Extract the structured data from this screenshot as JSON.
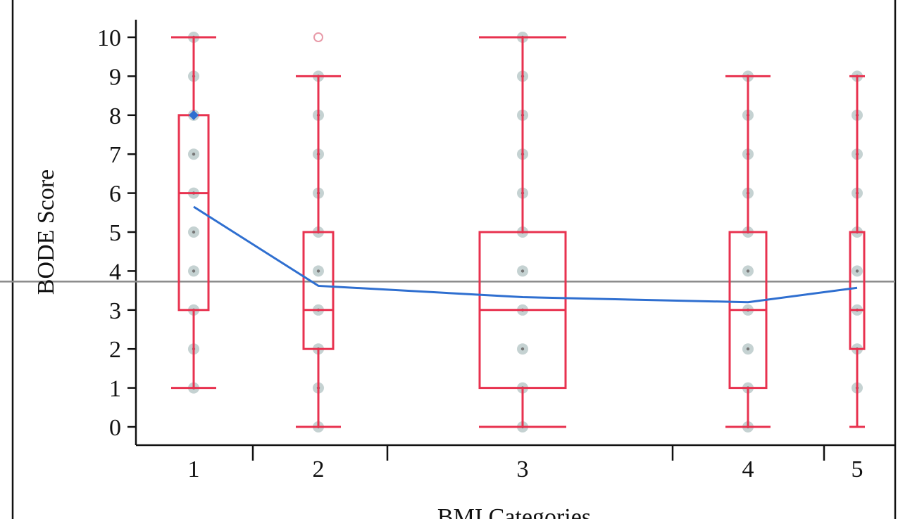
{
  "chart_data": {
    "type": "box",
    "title": "",
    "xlabel": "BMI Categories",
    "ylabel": "BODE Score",
    "ylim": [
      0,
      10
    ],
    "yticks": [
      0,
      1,
      2,
      3,
      4,
      5,
      6,
      7,
      8,
      9,
      10
    ],
    "categories": [
      "1",
      "2",
      "3",
      "4",
      "5"
    ],
    "boxes": [
      {
        "category": "1",
        "whisker_low": 1,
        "q1": 3,
        "median": 6,
        "q3": 8,
        "whisker_high": 10,
        "mean": 5.65,
        "outliers": [],
        "points": [
          1,
          2,
          3,
          4,
          5,
          6,
          7,
          8,
          9,
          10
        ]
      },
      {
        "category": "2",
        "whisker_low": 0,
        "q1": 2,
        "median": 3,
        "q3": 5,
        "whisker_high": 9,
        "mean": 3.62,
        "outliers": [
          10
        ],
        "points": [
          0,
          1,
          2,
          3,
          4,
          5,
          6,
          7,
          8,
          9
        ]
      },
      {
        "category": "3",
        "whisker_low": 0,
        "q1": 1,
        "median": 3,
        "q3": 5,
        "whisker_high": 10,
        "mean": 3.33,
        "outliers": [],
        "points": [
          0,
          1,
          2,
          3,
          4,
          5,
          6,
          7,
          8,
          9,
          10
        ]
      },
      {
        "category": "4",
        "whisker_low": 0,
        "q1": 1,
        "median": 3,
        "q3": 5,
        "whisker_high": 9,
        "mean": 3.2,
        "outliers": [],
        "points": [
          0,
          1,
          2,
          3,
          4,
          5,
          6,
          7,
          8,
          9
        ]
      },
      {
        "category": "5",
        "whisker_low": 0,
        "q1": 2,
        "median": 3,
        "q3": 5,
        "whisker_high": 9,
        "mean": 3.57,
        "outliers": [],
        "points": [
          1,
          2,
          3,
          4,
          5,
          6,
          7,
          8,
          9
        ]
      }
    ],
    "overall_mean": 3.73,
    "colors": {
      "box": "#e8324f",
      "mean_line": "#2f6fd0",
      "overall_line": "#8a8a8a",
      "points": "#b7c7c7"
    }
  }
}
